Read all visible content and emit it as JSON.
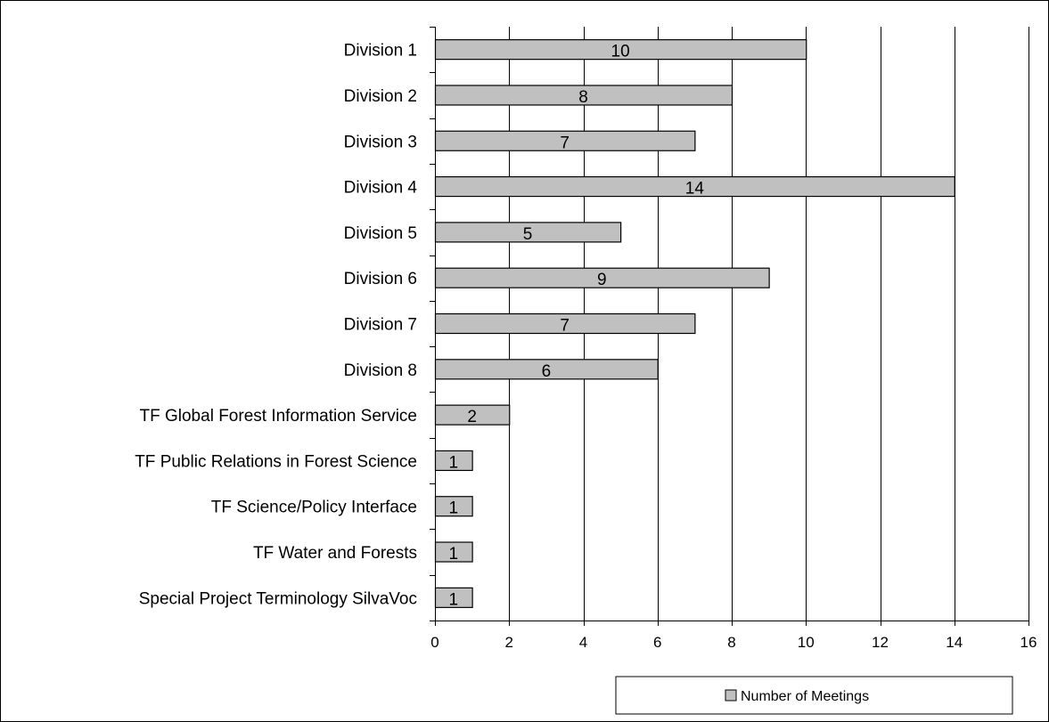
{
  "chart_data": {
    "type": "bar",
    "orientation": "horizontal",
    "title": "",
    "xlabel": "",
    "ylabel": "",
    "categories": [
      "Division 1",
      "Division 2",
      "Division 3",
      "Division 4",
      "Division 5",
      "Division 6",
      "Division 7",
      "Division 8",
      "TF Global Forest Information Service",
      "TF Public Relations in Forest Science",
      "TF Science/Policy Interface",
      "TF Water and Forests",
      "Special Project Terminology SilvaVoc"
    ],
    "series": [
      {
        "name": "Number of Meetings",
        "values": [
          10,
          8,
          7,
          14,
          5,
          9,
          7,
          6,
          2,
          1,
          1,
          1,
          1
        ],
        "color": "#c0c0c0"
      }
    ],
    "xlim": [
      0,
      16
    ],
    "xticks": [
      0,
      2,
      4,
      6,
      8,
      10,
      12,
      14,
      16
    ],
    "xtick_labels": [
      "0",
      "2",
      "4",
      "6",
      "8",
      "10",
      "12",
      "14",
      "16"
    ],
    "grid": "vertical",
    "data_labels": true,
    "legend": {
      "position": "bottom-right",
      "entries": [
        "Number of Meetings"
      ]
    }
  }
}
